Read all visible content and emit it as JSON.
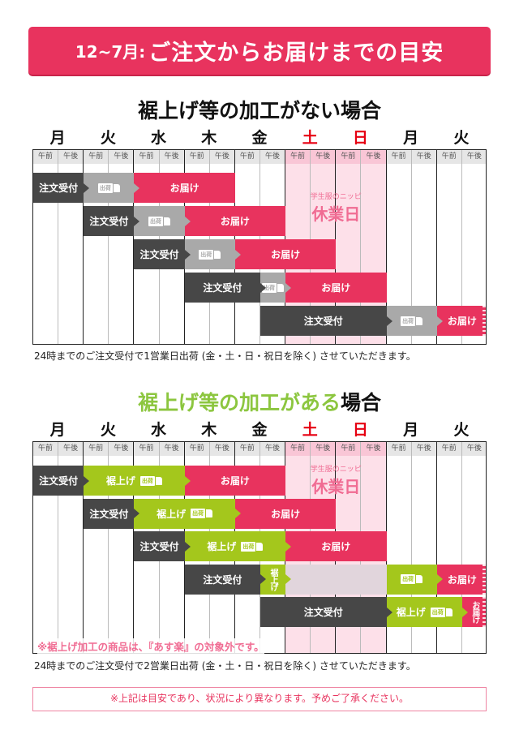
{
  "header": {
    "period": "12~7月:",
    "title": "ご注文からお届けまでの目安",
    "accent_color": "#e8335e"
  },
  "labels": {
    "order": "注文受付",
    "ship": "出荷",
    "deliver": "お届け",
    "hem": "裾上げ",
    "deliver_vertical": "お届け",
    "hem_vertical": "裾上げ"
  },
  "days": [
    "月",
    "火",
    "水",
    "木",
    "金",
    "土",
    "日",
    "月",
    "火"
  ],
  "halves": [
    "午前",
    "午後"
  ],
  "holiday": {
    "shop": "学生服のニッピ",
    "label": "休業日"
  },
  "section1": {
    "title": "裾上げ等の加工がない場合",
    "note": "24時までのご注文受付で1営業日出荷 (金・土・日・祝日を除く) させていただきます。",
    "rows": [
      [
        {
          "type": "order",
          "from": 0,
          "to": 2
        },
        {
          "type": "ship",
          "from": 2,
          "to": 4
        },
        {
          "type": "deliver",
          "from": 4,
          "to": 8
        }
      ],
      [
        {
          "type": "order",
          "from": 2,
          "to": 4
        },
        {
          "type": "ship",
          "from": 4,
          "to": 6
        },
        {
          "type": "deliver",
          "from": 6,
          "to": 10
        }
      ],
      [
        {
          "type": "order",
          "from": 4,
          "to": 6
        },
        {
          "type": "ship",
          "from": 6,
          "to": 8
        },
        {
          "type": "deliver",
          "from": 8,
          "to": 12
        }
      ],
      [
        {
          "type": "order",
          "from": 6,
          "to": 9
        },
        {
          "type": "ship",
          "from": 9,
          "to": 10
        },
        {
          "type": "deliver",
          "from": 10,
          "to": 14
        }
      ],
      [
        {
          "type": "order",
          "from": 9,
          "to": 14
        },
        {
          "type": "ship",
          "from": 14,
          "to": 16
        },
        {
          "type": "deliver",
          "from": 16,
          "to": 18
        }
      ]
    ]
  },
  "section2": {
    "title_green": "裾上げ等の加工がある",
    "title_black": "場合",
    "warning": "※裾上げ加工の商品は、『あす楽』の対象外です。",
    "note": "24時までのご注文受付で2営業日出荷 (金・土・日・祝日を除く) させていただきます。",
    "rows": [
      [
        {
          "type": "order",
          "from": 0,
          "to": 2
        },
        {
          "type": "hem",
          "from": 2,
          "to": 6
        },
        {
          "type": "deliver",
          "from": 6,
          "to": 10
        }
      ],
      [
        {
          "type": "order",
          "from": 2,
          "to": 4
        },
        {
          "type": "hem",
          "from": 4,
          "to": 8
        },
        {
          "type": "deliver",
          "from": 8,
          "to": 12
        }
      ],
      [
        {
          "type": "order",
          "from": 4,
          "to": 6
        },
        {
          "type": "hem",
          "from": 6,
          "to": 10
        },
        {
          "type": "deliver",
          "from": 10,
          "to": 14
        }
      ],
      [
        {
          "type": "order",
          "from": 6,
          "to": 9
        },
        {
          "type": "hem",
          "from": 9,
          "to": 10
        },
        {
          "type": "wait",
          "from": 10,
          "to": 14
        },
        {
          "type": "ship",
          "from": 14,
          "to": 16
        },
        {
          "type": "deliver",
          "from": 16,
          "to": 18
        }
      ],
      [
        {
          "type": "order",
          "from": 9,
          "to": 14
        },
        {
          "type": "hem",
          "from": 14,
          "to": 17
        },
        {
          "type": "deliver",
          "from": 17,
          "to": 18
        }
      ]
    ]
  },
  "disclaimer": "※上記は目安であり、状況により異なります。予めご了承ください。"
}
